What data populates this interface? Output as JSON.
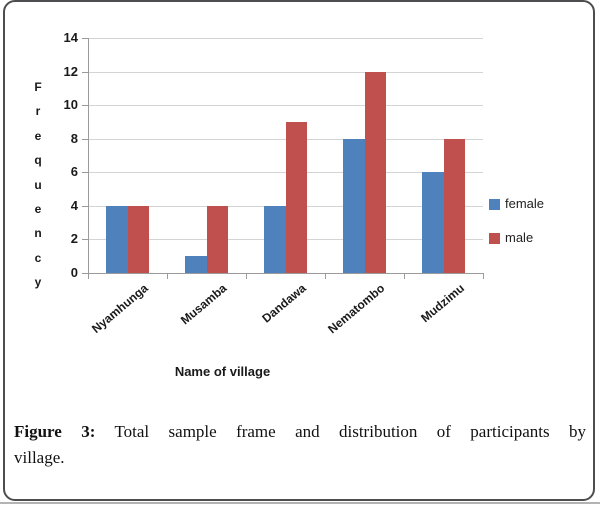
{
  "chart_data": {
    "type": "bar",
    "categories": [
      "Nyamhunga",
      "Musamba",
      "Dandawa",
      "Nematombo",
      "Mudzimu"
    ],
    "series": [
      {
        "name": "female",
        "color": "#4F81BD",
        "values": [
          4,
          1,
          4,
          8,
          6
        ]
      },
      {
        "name": "male",
        "color": "#C0504D",
        "values": [
          4,
          4,
          9,
          12,
          8
        ]
      }
    ],
    "title": "",
    "xlabel": "Name of village",
    "ylabel": "Frequency",
    "ylim": [
      0,
      14
    ],
    "ytick_step": 2,
    "grid": true,
    "legend_position": "right",
    "legend": [
      "female",
      "male"
    ]
  },
  "caption": {
    "label": "Figure 3:",
    "line1_rest": "Total sample frame and distribution of participants by",
    "line2": "village."
  }
}
